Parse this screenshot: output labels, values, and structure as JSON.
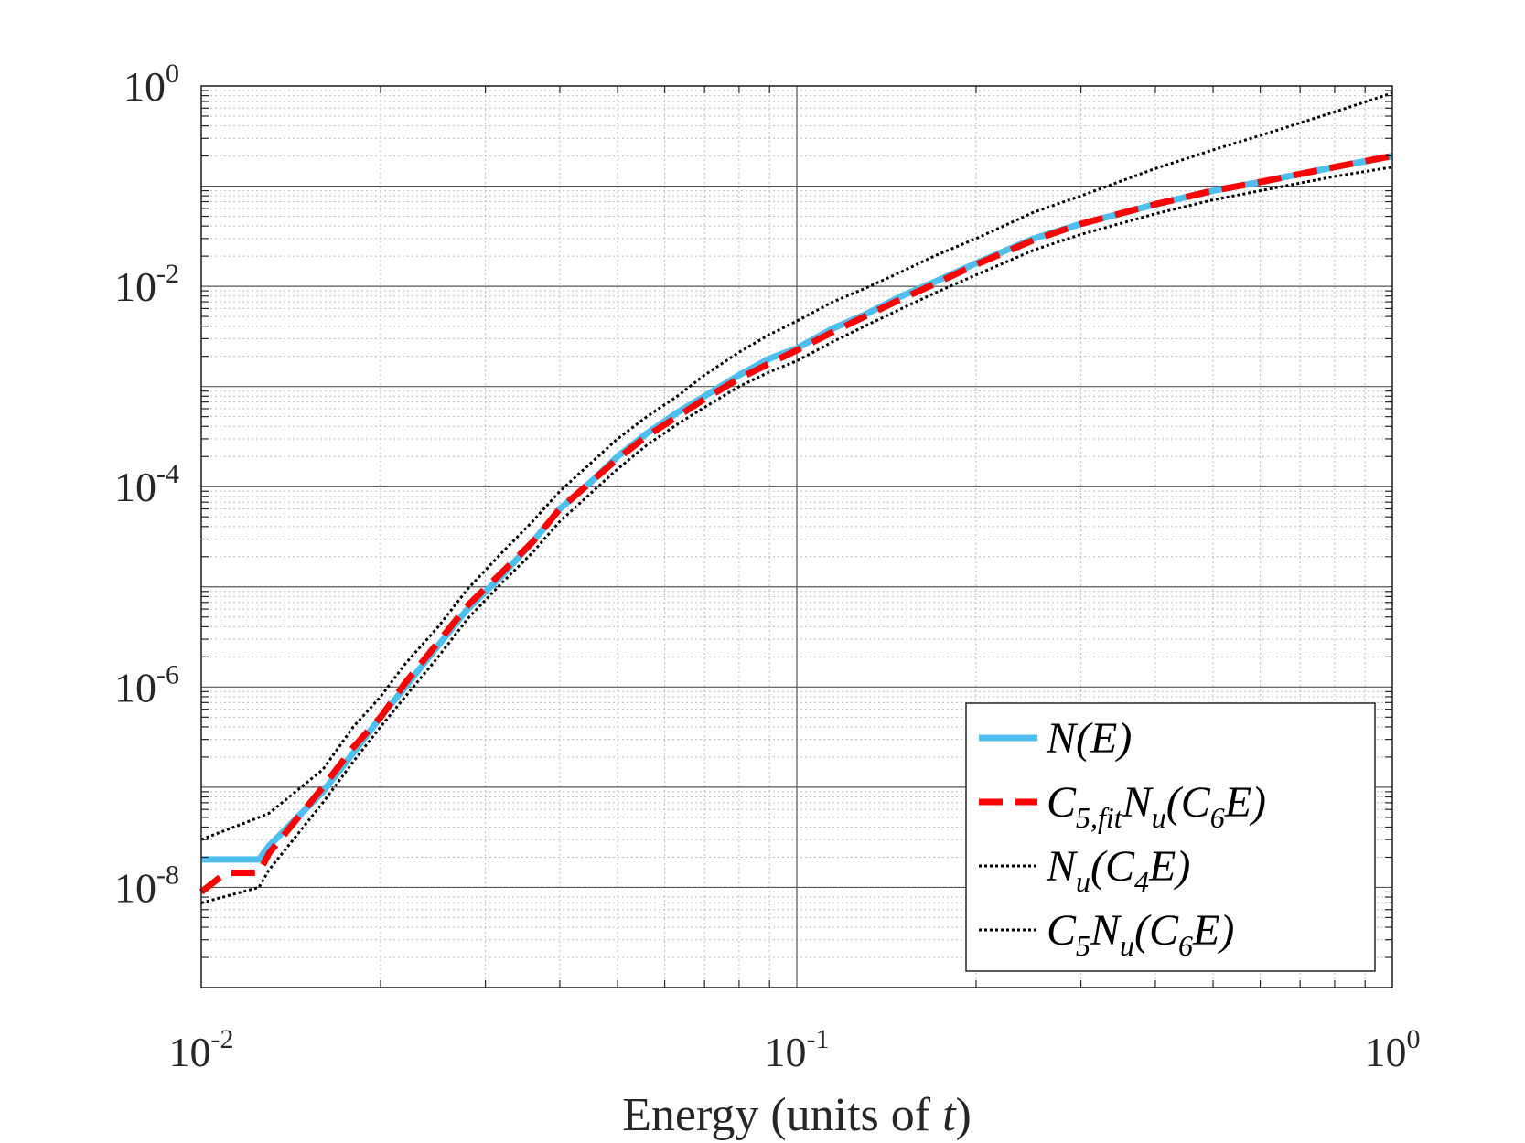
{
  "chart_data": {
    "type": "line",
    "xscale": "log",
    "yscale": "log",
    "xlim": [
      0.01,
      1
    ],
    "ylim": [
      1e-09,
      1
    ],
    "grid": true,
    "minor_grid": true,
    "title": "",
    "xlabel": {
      "text": "Energy (units of ",
      "var": "t",
      "close": ")"
    },
    "ylabel": "",
    "x_ticks": [
      {
        "value": 0.01,
        "base": "10",
        "exp": "-2"
      },
      {
        "value": 0.1,
        "base": "10",
        "exp": "-1"
      },
      {
        "value": 1,
        "base": "10",
        "exp": "0"
      }
    ],
    "y_ticks": [
      {
        "value": 1e-08,
        "base": "10",
        "exp": "-8"
      },
      {
        "value": 1e-06,
        "base": "10",
        "exp": "-6"
      },
      {
        "value": 0.0001,
        "base": "10",
        "exp": "-4"
      },
      {
        "value": 0.01,
        "base": "10",
        "exp": "-2"
      },
      {
        "value": 1,
        "base": "10",
        "exp": "0"
      }
    ],
    "legend_position": "bottom-right",
    "series": [
      {
        "name": "N(E)",
        "legend": [
          {
            "t": "N(E)"
          }
        ],
        "color": "#4DBEEE",
        "style": "solid",
        "x": [
          0.01,
          0.0125,
          0.013,
          0.016,
          0.018,
          0.02,
          0.022,
          0.025,
          0.028,
          0.032,
          0.036,
          0.04,
          0.045,
          0.05,
          0.056,
          0.063,
          0.07,
          0.08,
          0.09,
          0.1,
          0.115,
          0.13,
          0.15,
          0.17,
          0.2,
          0.25,
          0.3,
          0.4,
          0.5,
          0.6,
          0.8,
          1.0
        ],
        "y": [
          1.9e-08,
          1.9e-08,
          2.6e-08,
          9e-08,
          2.2e-07,
          5e-07,
          1e-06,
          2.6e-06,
          6e-06,
          1.3e-05,
          2.8e-05,
          6e-05,
          0.00011,
          0.0002,
          0.00034,
          0.00055,
          0.0008,
          0.0013,
          0.0019,
          0.0024,
          0.0038,
          0.0052,
          0.008,
          0.011,
          0.017,
          0.03,
          0.042,
          0.066,
          0.09,
          0.11,
          0.155,
          0.2
        ]
      },
      {
        "name": "C5,fit Nu(C6E)",
        "legend": [
          {
            "t": "C"
          },
          {
            "t": "5,fit",
            "sub": true
          },
          {
            "t": "N"
          },
          {
            "t": "u",
            "sub": true
          },
          {
            "t": "(C"
          },
          {
            "t": "6",
            "sub": true
          },
          {
            "t": "E)"
          }
        ],
        "color": "#FF0000",
        "style": "dashed",
        "x": [
          0.01,
          0.011,
          0.0125,
          0.013,
          0.016,
          0.018,
          0.02,
          0.022,
          0.025,
          0.028,
          0.032,
          0.036,
          0.04,
          0.045,
          0.05,
          0.056,
          0.063,
          0.07,
          0.08,
          0.09,
          0.1,
          0.115,
          0.13,
          0.15,
          0.17,
          0.2,
          0.25,
          0.3,
          0.4,
          0.5,
          0.6,
          0.8,
          1.0
        ],
        "y": [
          9e-09,
          1.4e-08,
          1.4e-08,
          2.2e-08,
          1e-07,
          2.5e-07,
          5e-07,
          1.1e-06,
          2.8e-06,
          6.5e-06,
          1.4e-05,
          2.8e-05,
          6e-05,
          0.00011,
          0.00019,
          0.00032,
          0.0005,
          0.00075,
          0.0012,
          0.0017,
          0.0023,
          0.0035,
          0.005,
          0.0075,
          0.0105,
          0.0165,
          0.029,
          0.042,
          0.066,
          0.09,
          0.11,
          0.155,
          0.2
        ]
      },
      {
        "name": "Nu(C4E)",
        "legend": [
          {
            "t": "N"
          },
          {
            "t": "u",
            "sub": true
          },
          {
            "t": "(C"
          },
          {
            "t": "4",
            "sub": true
          },
          {
            "t": "E)"
          }
        ],
        "color": "#000000",
        "style": "dotted",
        "x": [
          0.01,
          0.0125,
          0.013,
          0.016,
          0.018,
          0.02,
          0.022,
          0.025,
          0.028,
          0.032,
          0.036,
          0.04,
          0.045,
          0.05,
          0.056,
          0.063,
          0.07,
          0.08,
          0.09,
          0.1,
          0.115,
          0.13,
          0.15,
          0.17,
          0.2,
          0.25,
          0.3,
          0.4,
          0.5,
          0.6,
          0.8,
          1.0
        ],
        "y": [
          3e-08,
          5e-08,
          5.5e-08,
          1.5e-07,
          4e-07,
          8e-07,
          1.7e-06,
          4e-06,
          9.5e-06,
          2.2e-05,
          4.5e-05,
          9e-05,
          0.00017,
          0.0003,
          0.0005,
          0.0008,
          0.0013,
          0.0022,
          0.0033,
          0.0045,
          0.007,
          0.0095,
          0.014,
          0.02,
          0.03,
          0.055,
          0.08,
          0.15,
          0.23,
          0.32,
          0.55,
          0.85
        ]
      },
      {
        "name": "C5 Nu(C6E)",
        "legend": [
          {
            "t": "C"
          },
          {
            "t": "5",
            "sub": true
          },
          {
            "t": "N"
          },
          {
            "t": "u",
            "sub": true
          },
          {
            "t": "(C"
          },
          {
            "t": "6",
            "sub": true
          },
          {
            "t": "E)"
          }
        ],
        "color": "#000000",
        "style": "dotted",
        "x": [
          0.01,
          0.0125,
          0.013,
          0.016,
          0.018,
          0.02,
          0.022,
          0.025,
          0.028,
          0.032,
          0.036,
          0.04,
          0.045,
          0.05,
          0.056,
          0.063,
          0.07,
          0.08,
          0.09,
          0.1,
          0.115,
          0.13,
          0.15,
          0.17,
          0.2,
          0.25,
          0.3,
          0.4,
          0.5,
          0.6,
          0.8,
          1.0
        ],
        "y": [
          7e-09,
          1e-08,
          1.5e-08,
          7e-08,
          1.8e-07,
          4e-07,
          8e-07,
          2e-06,
          4.8e-06,
          1.1e-05,
          2.2e-05,
          4.5e-05,
          8.5e-05,
          0.00015,
          0.00026,
          0.00042,
          0.00062,
          0.001,
          0.0014,
          0.0018,
          0.0028,
          0.004,
          0.006,
          0.0085,
          0.013,
          0.023,
          0.033,
          0.053,
          0.073,
          0.09,
          0.125,
          0.155
        ]
      }
    ]
  }
}
